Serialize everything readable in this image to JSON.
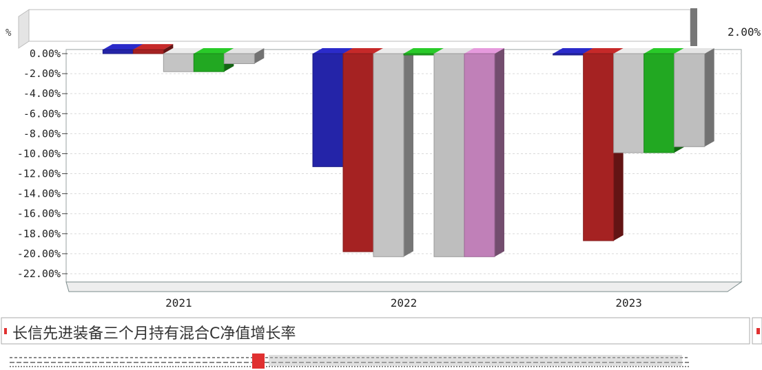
{
  "chart_data": {
    "type": "bar",
    "categories": [
      "2021",
      "2022",
      "2023"
    ],
    "ylim": [
      -22,
      2
    ],
    "yticks": [
      0,
      -2,
      -4,
      -6,
      -8,
      -10,
      -12,
      -14,
      -16,
      -18,
      -20,
      -22
    ],
    "ytick_labels": [
      "0.00%",
      "-2.00%",
      "-4.00%",
      "-6.00%",
      "-8.00%",
      "-10.00%",
      "-12.00%",
      "-14.00%",
      "-16.00%",
      "-18.00%",
      "-20.00%",
      "-22.00%"
    ],
    "top_right_label": "2.00%",
    "grid": true,
    "series": [
      {
        "name": "长信先进装备三个月持有混合C净值增长率",
        "color": "#2424a8",
        "values": [
          0.4,
          -11.3,
          0.0
        ]
      },
      {
        "color": "#a52222",
        "values": [
          0.4,
          -19.8,
          -18.7
        ]
      },
      {
        "color": "#c4c4c4",
        "values": [
          -1.8,
          -20.3,
          -9.9
        ]
      },
      {
        "color": "#22a822",
        "values": [
          -1.8,
          0.0,
          -9.9
        ]
      },
      {
        "color": "#bebebe",
        "values": [
          -1.0,
          -20.3,
          -9.3
        ]
      },
      {
        "color": "#c080b8",
        "values": [
          null,
          -20.3,
          null
        ]
      }
    ]
  }
}
